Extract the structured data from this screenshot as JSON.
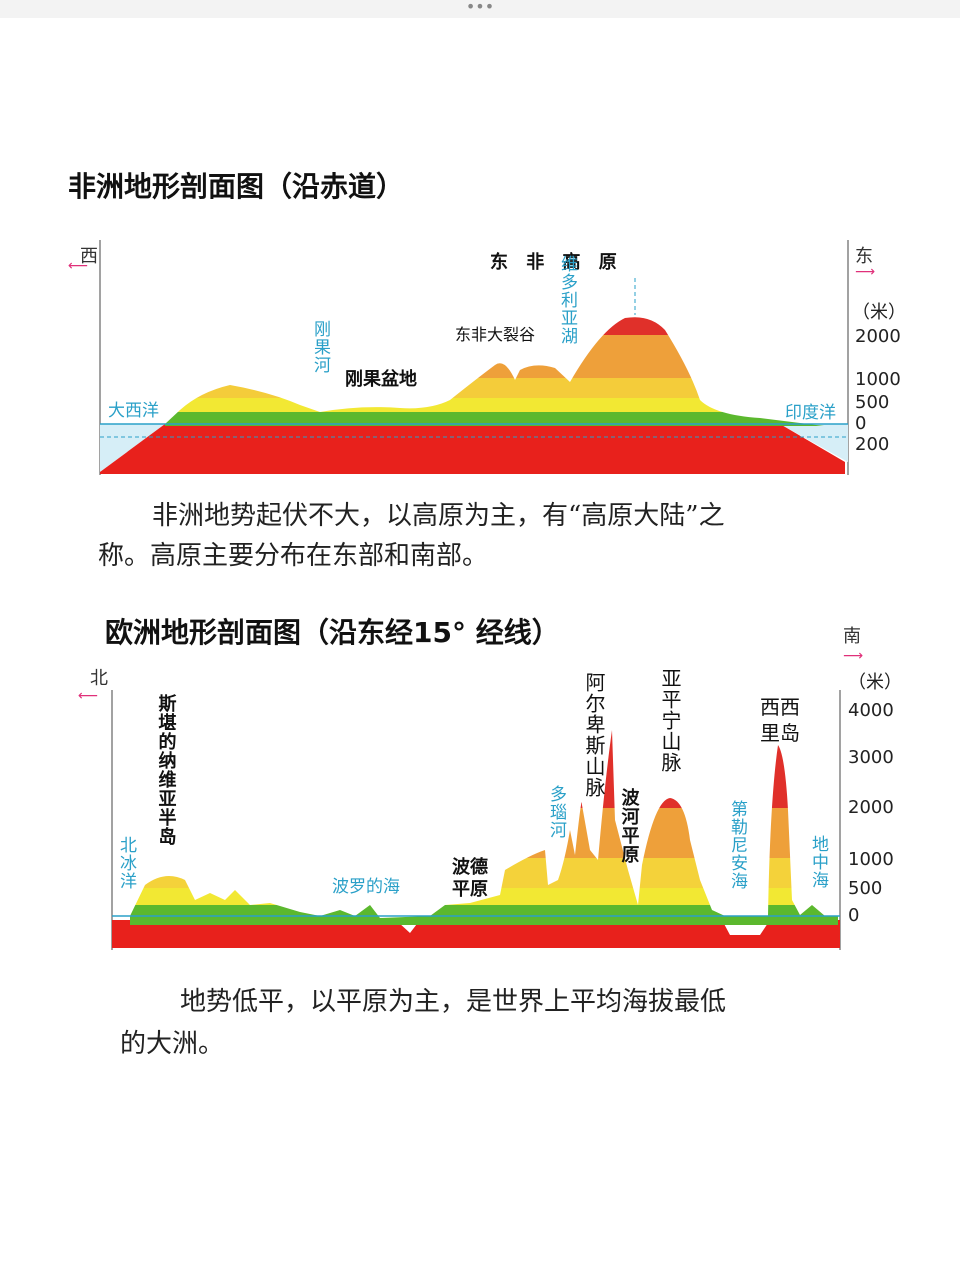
{
  "africa": {
    "title": "非洲地形剖面图（沿赤道）",
    "west": "西",
    "east": "东",
    "unit": "（米）",
    "ticks": [
      "2000",
      "1000",
      "500",
      "0",
      "200"
    ],
    "plateau": "东 非 高 原",
    "lake": "维多利亚湖",
    "river": "刚果河",
    "basin": "刚果盆地",
    "rift": "东非大裂谷",
    "atlantic": "大西洋",
    "indian": "印度洋",
    "caption": [
      "非洲地势起伏不大，以高原为主，有“高原大陆”之",
      "称。高原主要分布在东部和南部。"
    ]
  },
  "europe": {
    "title": "欧洲地形剖面图（沿东经15° 经线）",
    "north": "北",
    "south": "南",
    "unit": "（米）",
    "ticks": [
      "4000",
      "3000",
      "2000",
      "1000",
      "500",
      "0"
    ],
    "scandinavia": "斯堪的纳维亚半岛",
    "arctic": "北冰洋",
    "baltic": "波罗的海",
    "polish": [
      "波德",
      "平原"
    ],
    "danube": "多瑙河",
    "alps": "阿尔卑斯山脉",
    "po": "波河平原",
    "apennines": "亚平宁山脉",
    "tyrrhenian": "第勒尼安海",
    "sicily": [
      "西西",
      "里岛"
    ],
    "mediterranean": "地中海",
    "caption": [
      "地势低平，以平原为主，是世界上平均海拔最低",
      "的大洲。"
    ]
  }
}
